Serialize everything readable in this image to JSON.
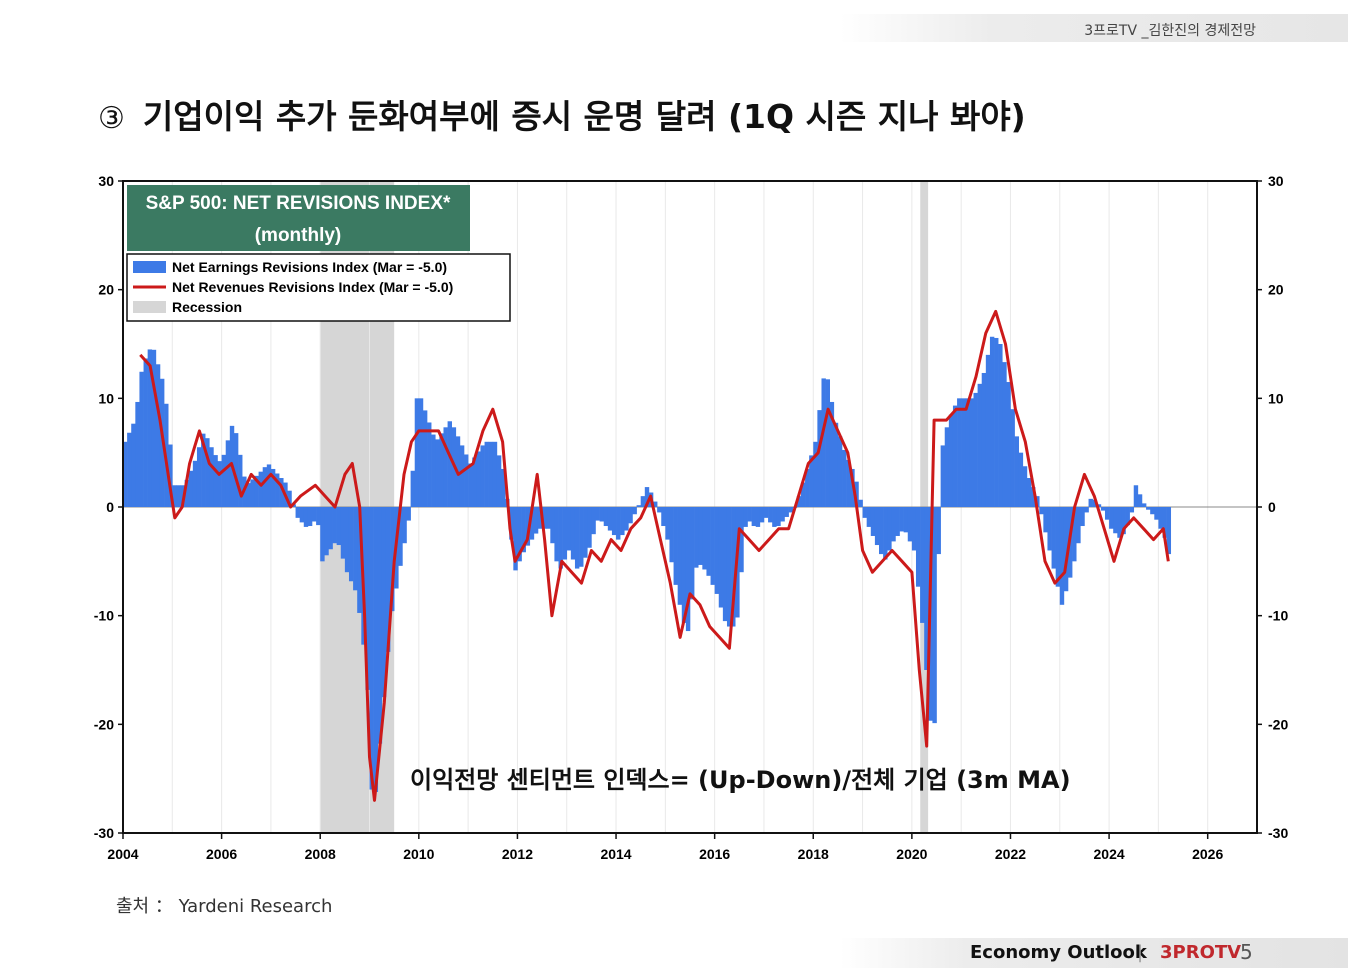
{
  "header": {
    "channel": "3프로TV _김한진의 경제전망"
  },
  "slide": {
    "number_symbol": "③",
    "title": "기업이익 추가 둔화여부에 증시 운명 달려 (1Q 시즌 지나 봐야)",
    "source": "출처 ： Yardeni Research"
  },
  "footer": {
    "label": "Economy Outlook",
    "separator": "|",
    "brand": "3PROTV",
    "page": "5"
  },
  "chart_data": {
    "type": "bar",
    "title": "S&P 500: NET REVISIONS INDEX*",
    "subtitle": "(monthly)",
    "annotation": "이익전망 센티먼트 인덱스= (Up-Down)/전체 기업 (3m MA)",
    "ylim": [
      -30,
      30
    ],
    "yticks": [
      30,
      20,
      10,
      0,
      -10,
      -20,
      -30
    ],
    "xlim": [
      2004,
      2027
    ],
    "xticks": [
      2004,
      2006,
      2008,
      2010,
      2012,
      2014,
      2016,
      2018,
      2020,
      2022,
      2024,
      2026
    ],
    "legend": {
      "position": "top-left",
      "items": [
        {
          "label": "Net Earnings Revisions Index (Mar  = -5.0)",
          "kind": "bars",
          "color": "#3d7ae6"
        },
        {
          "label": "Net Revenues Revisions Index (Mar  = -5.0)",
          "kind": "line",
          "color": "#cc1a1a"
        },
        {
          "label": "Recession",
          "kind": "shade",
          "color": "#d6d6d6"
        }
      ]
    },
    "recessions": [
      [
        2008.0,
        2009.5
      ],
      [
        2020.17,
        2020.33
      ]
    ],
    "earnings_keyframes": [
      [
        2004.0,
        6
      ],
      [
        2004.2,
        8
      ],
      [
        2004.35,
        13
      ],
      [
        2004.55,
        15
      ],
      [
        2004.8,
        11
      ],
      [
        2005.0,
        2
      ],
      [
        2005.2,
        2
      ],
      [
        2005.4,
        4
      ],
      [
        2005.6,
        7
      ],
      [
        2005.8,
        5
      ],
      [
        2005.95,
        4
      ],
      [
        2006.2,
        8
      ],
      [
        2006.45,
        2
      ],
      [
        2006.7,
        3
      ],
      [
        2006.9,
        4
      ],
      [
        2007.1,
        3
      ],
      [
        2007.3,
        2
      ],
      [
        2007.5,
        -1
      ],
      [
        2007.7,
        -2
      ],
      [
        2007.9,
        -1
      ],
      [
        2008.0,
        -5
      ],
      [
        2008.3,
        -3
      ],
      [
        2008.5,
        -6
      ],
      [
        2008.7,
        -8
      ],
      [
        2008.9,
        -15
      ],
      [
        2009.0,
        -26
      ],
      [
        2009.05,
        -28
      ],
      [
        2009.2,
        -20
      ],
      [
        2009.4,
        -10
      ],
      [
        2009.6,
        -5
      ],
      [
        2009.8,
        0
      ],
      [
        2009.9,
        10
      ],
      [
        2010.0,
        10
      ],
      [
        2010.3,
        6
      ],
      [
        2010.6,
        8
      ],
      [
        2010.8,
        6
      ],
      [
        2011.0,
        4
      ],
      [
        2011.3,
        6
      ],
      [
        2011.5,
        6
      ],
      [
        2011.7,
        3
      ],
      [
        2011.9,
        -6
      ],
      [
        2012.1,
        -4
      ],
      [
        2012.4,
        -2
      ],
      [
        2012.6,
        -2
      ],
      [
        2012.8,
        -6
      ],
      [
        2013.0,
        -4
      ],
      [
        2013.2,
        -6
      ],
      [
        2013.4,
        -4
      ],
      [
        2013.6,
        -1
      ],
      [
        2013.8,
        -2
      ],
      [
        2014.0,
        -3
      ],
      [
        2014.2,
        -2
      ],
      [
        2014.4,
        0
      ],
      [
        2014.6,
        2
      ],
      [
        2014.8,
        0
      ],
      [
        2015.0,
        -3
      ],
      [
        2015.2,
        -8
      ],
      [
        2015.4,
        -12
      ],
      [
        2015.6,
        -5
      ],
      [
        2015.8,
        -6
      ],
      [
        2016.0,
        -8
      ],
      [
        2016.2,
        -11
      ],
      [
        2016.4,
        -11
      ],
      [
        2016.6,
        -1
      ],
      [
        2016.8,
        -2
      ],
      [
        2017.0,
        -1
      ],
      [
        2017.2,
        -2
      ],
      [
        2017.4,
        -1
      ],
      [
        2017.6,
        0
      ],
      [
        2017.8,
        3
      ],
      [
        2018.0,
        6
      ],
      [
        2018.2,
        13
      ],
      [
        2018.4,
        8
      ],
      [
        2018.6,
        5
      ],
      [
        2018.8,
        3
      ],
      [
        2019.0,
        -1
      ],
      [
        2019.2,
        -3
      ],
      [
        2019.4,
        -5
      ],
      [
        2019.6,
        -3
      ],
      [
        2019.8,
        -2
      ],
      [
        2020.0,
        -4
      ],
      [
        2020.2,
        -12
      ],
      [
        2020.3,
        -18
      ],
      [
        2020.4,
        -23
      ],
      [
        2020.55,
        5
      ],
      [
        2020.7,
        8
      ],
      [
        2020.9,
        10
      ],
      [
        2021.2,
        10
      ],
      [
        2021.4,
        12
      ],
      [
        2021.6,
        16
      ],
      [
        2021.75,
        15
      ],
      [
        2021.9,
        12
      ],
      [
        2022.1,
        6
      ],
      [
        2022.3,
        3
      ],
      [
        2022.5,
        1
      ],
      [
        2022.7,
        -3
      ],
      [
        2022.9,
        -7
      ],
      [
        2023.0,
        -9
      ],
      [
        2023.2,
        -6
      ],
      [
        2023.4,
        -2
      ],
      [
        2023.6,
        1
      ],
      [
        2023.8,
        0
      ],
      [
        2024.0,
        -2
      ],
      [
        2024.2,
        -3
      ],
      [
        2024.4,
        -1
      ],
      [
        2024.5,
        2
      ],
      [
        2024.7,
        0
      ],
      [
        2024.9,
        -1
      ],
      [
        2025.1,
        -3
      ],
      [
        2025.2,
        -5
      ]
    ],
    "revenues_keyframes": [
      [
        2004.35,
        14
      ],
      [
        2004.55,
        13
      ],
      [
        2004.75,
        8
      ],
      [
        2004.95,
        2
      ],
      [
        2005.05,
        -1
      ],
      [
        2005.2,
        0
      ],
      [
        2005.35,
        4
      ],
      [
        2005.55,
        7
      ],
      [
        2005.75,
        4
      ],
      [
        2005.95,
        3
      ],
      [
        2006.2,
        4
      ],
      [
        2006.4,
        1
      ],
      [
        2006.6,
        3
      ],
      [
        2006.8,
        2
      ],
      [
        2007.0,
        3
      ],
      [
        2007.2,
        2
      ],
      [
        2007.4,
        0
      ],
      [
        2007.6,
        1
      ],
      [
        2007.9,
        2
      ],
      [
        2008.1,
        1
      ],
      [
        2008.3,
        0
      ],
      [
        2008.5,
        3
      ],
      [
        2008.65,
        4
      ],
      [
        2008.8,
        0
      ],
      [
        2008.9,
        -10
      ],
      [
        2009.0,
        -23
      ],
      [
        2009.1,
        -27
      ],
      [
        2009.3,
        -18
      ],
      [
        2009.5,
        -5
      ],
      [
        2009.7,
        3
      ],
      [
        2009.85,
        6
      ],
      [
        2010.0,
        7
      ],
      [
        2010.4,
        7
      ],
      [
        2010.6,
        5
      ],
      [
        2010.8,
        3
      ],
      [
        2011.1,
        4
      ],
      [
        2011.3,
        7
      ],
      [
        2011.5,
        9
      ],
      [
        2011.7,
        6
      ],
      [
        2011.85,
        -2
      ],
      [
        2011.95,
        -5
      ],
      [
        2012.2,
        -3
      ],
      [
        2012.4,
        3
      ],
      [
        2012.55,
        -3
      ],
      [
        2012.7,
        -10
      ],
      [
        2012.9,
        -5
      ],
      [
        2013.1,
        -6
      ],
      [
        2013.3,
        -7
      ],
      [
        2013.5,
        -4
      ],
      [
        2013.7,
        -5
      ],
      [
        2013.9,
        -3
      ],
      [
        2014.1,
        -4
      ],
      [
        2014.3,
        -2
      ],
      [
        2014.5,
        -1
      ],
      [
        2014.7,
        1
      ],
      [
        2014.9,
        -3
      ],
      [
        2015.1,
        -7
      ],
      [
        2015.3,
        -12
      ],
      [
        2015.5,
        -8
      ],
      [
        2015.7,
        -9
      ],
      [
        2015.9,
        -11
      ],
      [
        2016.1,
        -12
      ],
      [
        2016.3,
        -13
      ],
      [
        2016.5,
        -2
      ],
      [
        2016.7,
        -3
      ],
      [
        2016.9,
        -4
      ],
      [
        2017.1,
        -3
      ],
      [
        2017.3,
        -2
      ],
      [
        2017.5,
        -2
      ],
      [
        2017.7,
        1
      ],
      [
        2017.9,
        4
      ],
      [
        2018.1,
        5
      ],
      [
        2018.3,
        9
      ],
      [
        2018.5,
        7
      ],
      [
        2018.7,
        5
      ],
      [
        2018.85,
        1
      ],
      [
        2019.0,
        -4
      ],
      [
        2019.2,
        -6
      ],
      [
        2019.4,
        -5
      ],
      [
        2019.6,
        -4
      ],
      [
        2019.8,
        -5
      ],
      [
        2020.0,
        -6
      ],
      [
        2020.15,
        -15
      ],
      [
        2020.3,
        -22
      ],
      [
        2020.45,
        8
      ],
      [
        2020.7,
        8
      ],
      [
        2020.9,
        9
      ],
      [
        2021.1,
        9
      ],
      [
        2021.3,
        12
      ],
      [
        2021.5,
        16
      ],
      [
        2021.7,
        18
      ],
      [
        2021.9,
        15
      ],
      [
        2022.1,
        9
      ],
      [
        2022.3,
        6
      ],
      [
        2022.5,
        1
      ],
      [
        2022.7,
        -5
      ],
      [
        2022.9,
        -7
      ],
      [
        2023.1,
        -6
      ],
      [
        2023.3,
        0
      ],
      [
        2023.5,
        3
      ],
      [
        2023.7,
        1
      ],
      [
        2023.9,
        -2
      ],
      [
        2024.1,
        -5
      ],
      [
        2024.3,
        -2
      ],
      [
        2024.5,
        -1
      ],
      [
        2024.7,
        -2
      ],
      [
        2024.9,
        -3
      ],
      [
        2025.1,
        -2
      ],
      [
        2025.2,
        -5
      ]
    ]
  }
}
